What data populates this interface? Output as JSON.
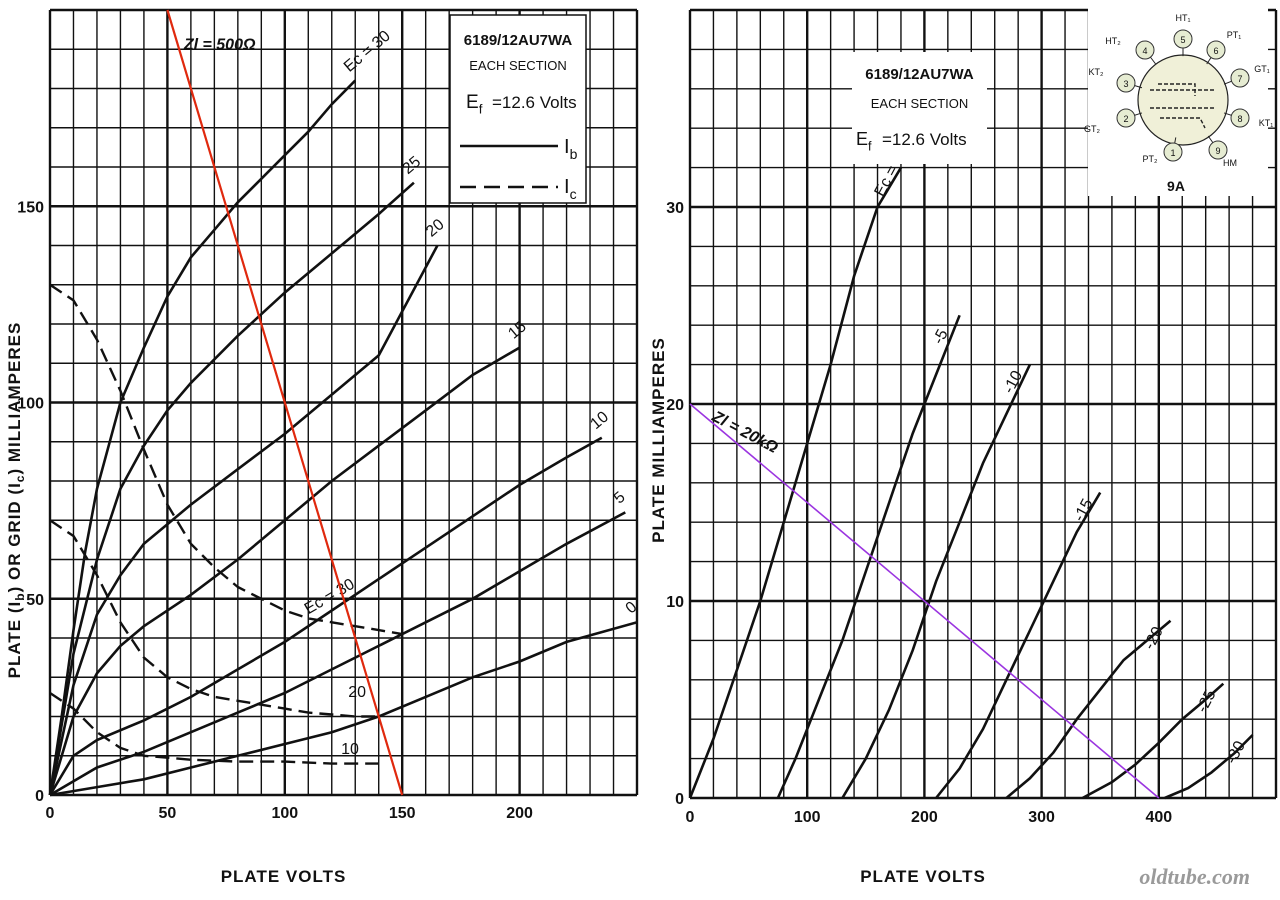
{
  "watermark": "oldtube.com",
  "chart_data": [
    {
      "type": "line",
      "id": "left",
      "title": "6189/12AU7WA",
      "subtitle": "EACH SECTION",
      "filament": "=12.6 Volts",
      "filament_symbol": "E",
      "filament_sub": "f",
      "legend": [
        {
          "name": "I",
          "sub": "b",
          "style": "solid"
        },
        {
          "name": "I",
          "sub": "c",
          "style": "dashed"
        }
      ],
      "xlabel": "PLATE VOLTS",
      "ylabel": "PLATE (Iₕ) OR GRID (Iᴄ) MILLIAMPERES",
      "ylabel_parts": [
        "PLATE (I",
        "b",
        ") OR GRID (I",
        "c",
        ") MILLIAMPERES"
      ],
      "xlim": [
        0,
        250
      ],
      "ylim": [
        0,
        200
      ],
      "xticks": [
        0,
        50,
        100,
        150,
        200
      ],
      "yticks": [
        0,
        50,
        100,
        150
      ],
      "grid": true,
      "plate_series": [
        {
          "name": "30",
          "label": "Eᴄ = 30",
          "points": [
            [
              0,
              0
            ],
            [
              5,
              20
            ],
            [
              10,
              42
            ],
            [
              15,
              62
            ],
            [
              20,
              78
            ],
            [
              30,
              100
            ],
            [
              40,
              114
            ],
            [
              50,
              127
            ],
            [
              60,
              137
            ],
            [
              70,
              144
            ],
            [
              80,
              151
            ],
            [
              90,
              157
            ],
            [
              100,
              163
            ],
            [
              110,
              169
            ],
            [
              120,
              176
            ],
            [
              130,
              182
            ]
          ]
        },
        {
          "name": "25",
          "points": [
            [
              0,
              0
            ],
            [
              10,
              36
            ],
            [
              20,
              60
            ],
            [
              30,
              78
            ],
            [
              40,
              89
            ],
            [
              50,
              98
            ],
            [
              60,
              105
            ],
            [
              80,
              117
            ],
            [
              100,
              128
            ],
            [
              120,
              138
            ],
            [
              140,
              148
            ],
            [
              155,
              156
            ]
          ]
        },
        {
          "name": "20",
          "points": [
            [
              0,
              0
            ],
            [
              10,
              28
            ],
            [
              20,
              46
            ],
            [
              30,
              56
            ],
            [
              40,
              64
            ],
            [
              50,
              69
            ],
            [
              60,
              74
            ],
            [
              80,
              83
            ],
            [
              100,
              92
            ],
            [
              120,
              102
            ],
            [
              140,
              112
            ],
            [
              165,
              140
            ]
          ]
        },
        {
          "name": "15",
          "points": [
            [
              0,
              0
            ],
            [
              10,
              20
            ],
            [
              20,
              31
            ],
            [
              30,
              38
            ],
            [
              40,
              43
            ],
            [
              60,
              51
            ],
            [
              80,
              60
            ],
            [
              100,
              70
            ],
            [
              120,
              80
            ],
            [
              140,
              89
            ],
            [
              160,
              98
            ],
            [
              180,
              107
            ],
            [
              200,
              114
            ]
          ]
        },
        {
          "name": "10",
          "points": [
            [
              0,
              0
            ],
            [
              10,
              10
            ],
            [
              20,
              14
            ],
            [
              40,
              19
            ],
            [
              60,
              25
            ],
            [
              80,
              32
            ],
            [
              100,
              39
            ],
            [
              120,
              47
            ],
            [
              140,
              55
            ],
            [
              160,
              63
            ],
            [
              180,
              71
            ],
            [
              200,
              79
            ],
            [
              220,
              86
            ],
            [
              235,
              91
            ]
          ]
        },
        {
          "name": "5",
          "points": [
            [
              0,
              0
            ],
            [
              20,
              7
            ],
            [
              40,
              11
            ],
            [
              60,
              16
            ],
            [
              80,
              21
            ],
            [
              100,
              26
            ],
            [
              120,
              32
            ],
            [
              140,
              38
            ],
            [
              160,
              44
            ],
            [
              180,
              50
            ],
            [
              200,
              57
            ],
            [
              220,
              64
            ],
            [
              245,
              72
            ]
          ]
        },
        {
          "name": "0",
          "points": [
            [
              0,
              0
            ],
            [
              20,
              2
            ],
            [
              40,
              4
            ],
            [
              60,
              7
            ],
            [
              80,
              10
            ],
            [
              100,
              13
            ],
            [
              120,
              16
            ],
            [
              140,
              20
            ],
            [
              160,
              25
            ],
            [
              180,
              30
            ],
            [
              200,
              34
            ],
            [
              220,
              39
            ],
            [
              250,
              44
            ]
          ]
        }
      ],
      "grid_series": [
        {
          "name": "30",
          "label": "Eᴄ = 30",
          "points": [
            [
              0,
              130
            ],
            [
              10,
              126
            ],
            [
              20,
              116
            ],
            [
              30,
              103
            ],
            [
              40,
              88
            ],
            [
              50,
              74
            ],
            [
              60,
              64
            ],
            [
              70,
              58
            ],
            [
              80,
              53
            ],
            [
              90,
              50
            ],
            [
              100,
              47
            ],
            [
              110,
              45
            ],
            [
              120,
              44
            ],
            [
              130,
              43
            ],
            [
              140,
              42
            ],
            [
              150,
              41
            ]
          ]
        },
        {
          "name": "20",
          "points": [
            [
              0,
              70
            ],
            [
              10,
              66
            ],
            [
              20,
              56
            ],
            [
              30,
              44
            ],
            [
              40,
              35
            ],
            [
              50,
              30
            ],
            [
              60,
              27
            ],
            [
              70,
              25
            ],
            [
              80,
              24
            ],
            [
              90,
              23
            ],
            [
              100,
              22
            ],
            [
              110,
              21
            ],
            [
              120,
              20.5
            ],
            [
              130,
              20
            ],
            [
              140,
              20
            ]
          ]
        },
        {
          "name": "10",
          "points": [
            [
              0,
              26
            ],
            [
              10,
              22
            ],
            [
              20,
              16
            ],
            [
              30,
              12
            ],
            [
              40,
              10
            ],
            [
              50,
              9.5
            ],
            [
              60,
              9
            ],
            [
              80,
              8.5
            ],
            [
              100,
              8.5
            ],
            [
              120,
              8
            ],
            [
              140,
              8
            ]
          ]
        }
      ],
      "load_line": {
        "label": "Zl = 500Ω",
        "points": [
          [
            50,
            200
          ],
          [
            150,
            0
          ]
        ],
        "color": "#e0290e"
      }
    },
    {
      "type": "line",
      "id": "right",
      "title": "6189/12AU7WA",
      "subtitle": "EACH SECTION",
      "filament": "=12.6 Volts",
      "filament_symbol": "E",
      "filament_sub": "f",
      "xlabel": "PLATE VOLTS",
      "ylabel": "PLATE MILLIAMPERES",
      "xlim": [
        0,
        500
      ],
      "ylim": [
        0,
        40
      ],
      "xticks": [
        0,
        100,
        200,
        300,
        400
      ],
      "yticks": [
        0,
        10,
        20,
        30
      ],
      "grid": true,
      "series": [
        {
          "name": "0",
          "label": "Eᴄ = 0",
          "points": [
            [
              0,
              0
            ],
            [
              20,
              3
            ],
            [
              40,
              6.5
            ],
            [
              60,
              10
            ],
            [
              80,
              14
            ],
            [
              100,
              18
            ],
            [
              120,
              22
            ],
            [
              140,
              26.5
            ],
            [
              160,
              30
            ],
            [
              180,
              32
            ]
          ]
        },
        {
          "name": "-5",
          "points": [
            [
              75,
              0
            ],
            [
              90,
              2
            ],
            [
              110,
              5
            ],
            [
              130,
              8
            ],
            [
              150,
              11.5
            ],
            [
              170,
              15
            ],
            [
              190,
              18.5
            ],
            [
              210,
              21.5
            ],
            [
              230,
              24.5
            ]
          ]
        },
        {
          "name": "-10",
          "points": [
            [
              130,
              0
            ],
            [
              150,
              2
            ],
            [
              170,
              4.5
            ],
            [
              190,
              7.5
            ],
            [
              210,
              11
            ],
            [
              230,
              14
            ],
            [
              250,
              17
            ],
            [
              270,
              19.5
            ],
            [
              290,
              22
            ]
          ]
        },
        {
          "name": "-15",
          "points": [
            [
              210,
              0
            ],
            [
              230,
              1.5
            ],
            [
              250,
              3.5
            ],
            [
              270,
              6
            ],
            [
              290,
              8.5
            ],
            [
              310,
              11
            ],
            [
              330,
              13.5
            ],
            [
              350,
              15.5
            ]
          ]
        },
        {
          "name": "-20",
          "points": [
            [
              270,
              0
            ],
            [
              290,
              1
            ],
            [
              310,
              2.3
            ],
            [
              330,
              4
            ],
            [
              350,
              5.5
            ],
            [
              370,
              7
            ],
            [
              390,
              8
            ],
            [
              410,
              9
            ]
          ]
        },
        {
          "name": "-25",
          "points": [
            [
              335,
              0
            ],
            [
              360,
              0.8
            ],
            [
              380,
              1.7
            ],
            [
              400,
              2.8
            ],
            [
              420,
              4
            ],
            [
              440,
              5
            ],
            [
              455,
              5.8
            ]
          ]
        },
        {
          "name": "-30",
          "points": [
            [
              405,
              0
            ],
            [
              425,
              0.5
            ],
            [
              445,
              1.3
            ],
            [
              465,
              2.3
            ],
            [
              480,
              3.2
            ]
          ]
        }
      ],
      "load_line": {
        "label": "Zl = 20kΩ",
        "points": [
          [
            0,
            20
          ],
          [
            400,
            0
          ]
        ],
        "color": "#9b35e0"
      },
      "base_diagram": {
        "label": "9A",
        "pins": [
          {
            "n": "1",
            "name": "PT₂"
          },
          {
            "n": "2",
            "name": "GT₂"
          },
          {
            "n": "3",
            "name": "KT₂"
          },
          {
            "n": "4",
            "name": "HT₂"
          },
          {
            "n": "5",
            "name": "HT₁"
          },
          {
            "n": "6",
            "name": "PT₁"
          },
          {
            "n": "7",
            "name": "GT₁"
          },
          {
            "n": "8",
            "name": "KT₁"
          },
          {
            "n": "9",
            "name": "HM"
          }
        ]
      }
    }
  ]
}
